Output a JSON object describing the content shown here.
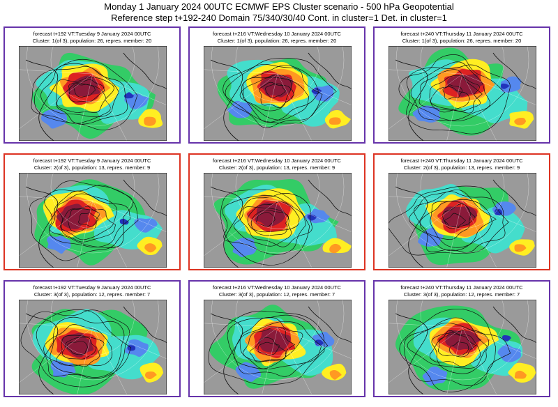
{
  "header": {
    "line1": "Monday 1 January 2024 00UTC ECMWF EPS Cluster scenario - 500 hPa Geopotential",
    "line2": "Reference step t+192-240 Domain 75/340/30/40 Cont. in cluster=1 Det. in cluster=1"
  },
  "colors": {
    "cluster1_border": "#6633aa",
    "cluster2_border": "#dd3322",
    "cluster3_border": "#6633aa"
  },
  "panels": [
    {
      "forecast": "forecast t+192 VT:Tuesday 9 January 2024 00UTC",
      "cluster": "Cluster: 1(of 3), population: 26, repres. member: 20"
    },
    {
      "forecast": "forecast t+216 VT:Wednesday 10 January 2024 00UTC",
      "cluster": "Cluster: 1(of 3), population: 26, repres. member: 20"
    },
    {
      "forecast": "forecast t+240 VT:Thursday 11 January 2024 00UTC",
      "cluster": "Cluster: 1(of 3), population: 26, repres. member: 20"
    },
    {
      "forecast": "forecast t+192 VT:Tuesday 9 January 2024 00UTC",
      "cluster": "Cluster: 2(of 3), population: 13, repres. member: 9"
    },
    {
      "forecast": "forecast t+216 VT:Wednesday 10 January 2024 00UTC",
      "cluster": "Cluster: 2(of 3), population: 13, repres. member: 9"
    },
    {
      "forecast": "forecast t+240 VT:Thursday 11 January 2024 00UTC",
      "cluster": "Cluster: 2(of 3), population: 13, repres. member: 9"
    },
    {
      "forecast": "forecast t+192 VT:Tuesday 9 January 2024 00UTC",
      "cluster": "Cluster: 3(of 3), population: 12, repres. member: 7"
    },
    {
      "forecast": "forecast t+216 VT:Wednesday 10 January 2024 00UTC",
      "cluster": "Cluster: 3(of 3), population: 12, repres. member: 7"
    },
    {
      "forecast": "forecast t+240 VT:Thursday 11 January 2024 00UTC",
      "cluster": "Cluster: 3(of 3), population: 12, repres. member: 7"
    }
  ]
}
